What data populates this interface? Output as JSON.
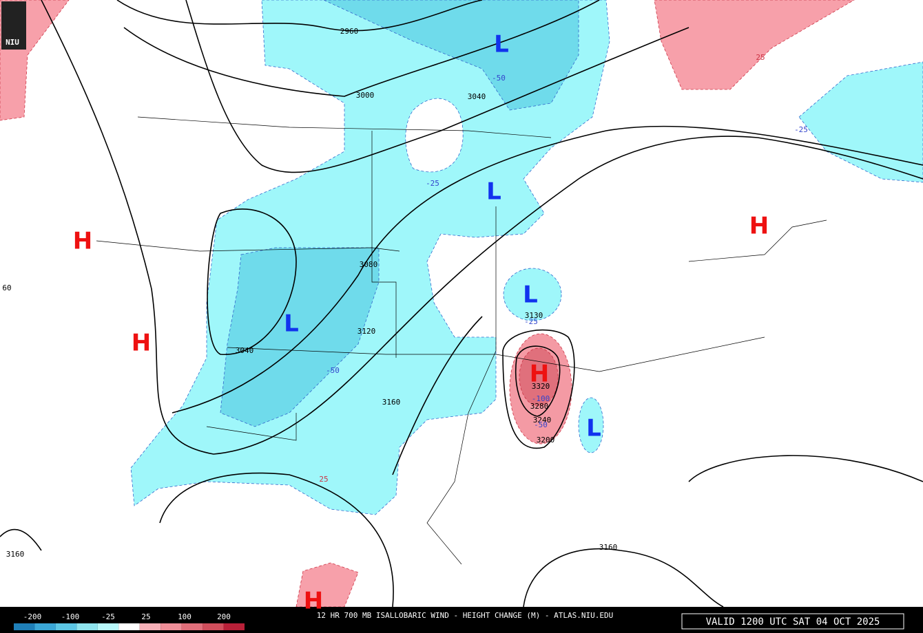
{
  "logo": "NIU",
  "title": "12 HR 700 MB ISALLOBARIC WIND - HEIGHT CHANGE (M) - ATLAS.NIU.EDU",
  "valid": "VALID 1200 UTC SAT 04 OCT 2025",
  "legend": {
    "labels": [
      "-200",
      "-100",
      "-25",
      "25",
      "100",
      "200"
    ],
    "colors": [
      "#1f7fb8",
      "#3aa6d6",
      "#5cc6e4",
      "#8fe4ee",
      "#b8f8fa",
      "#ffffff",
      "#f7b0b8",
      "#ee8e98",
      "#e06e7a",
      "#d04e5c",
      "#b82038"
    ]
  },
  "height_labels": [
    "2960",
    "3000",
    "3040",
    "3080",
    "3120",
    "3040",
    "3160",
    "3130",
    "3320",
    "3280",
    "3240",
    "3200",
    "3160",
    "3160",
    "60"
  ],
  "change_labels": [
    "-50",
    "-25",
    "-25",
    "-50",
    "25",
    "-25",
    "25",
    "-100",
    "-50"
  ],
  "highs": [
    "H",
    "H",
    "H",
    "H",
    "H"
  ],
  "lows": [
    "L",
    "L",
    "L",
    "L",
    "L"
  ]
}
